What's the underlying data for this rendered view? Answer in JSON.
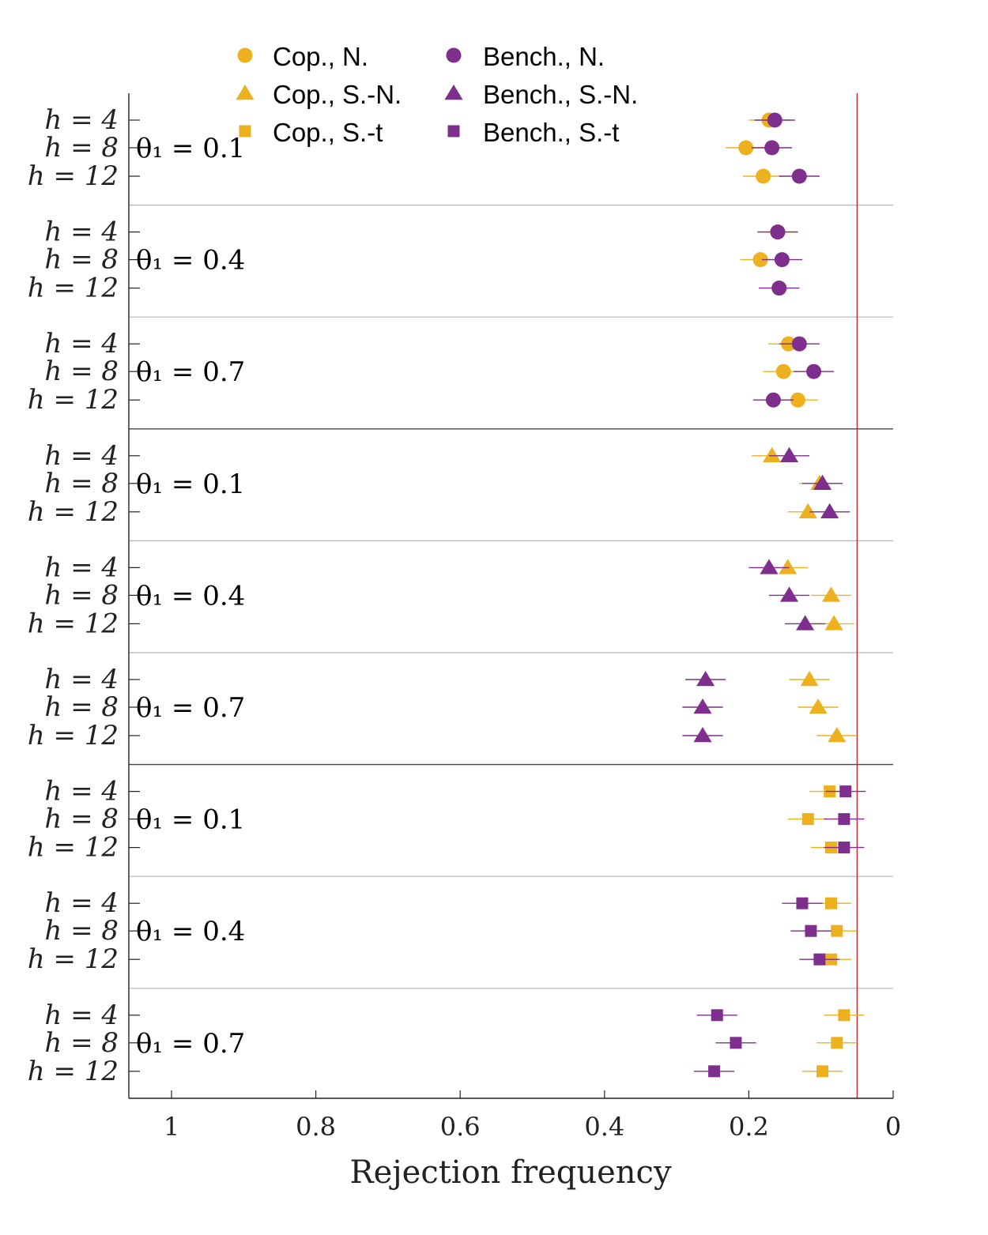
{
  "chart_data": {
    "type": "scatter",
    "title": "",
    "xlabel": "Rejection frequency",
    "ylabel": "",
    "xlim": [
      1.06,
      0
    ],
    "x_reversed": true,
    "xticks": [
      1,
      0.8,
      0.6,
      0.4,
      0.2,
      0
    ],
    "xtick_labels": [
      "1",
      "0.8",
      "0.6",
      "0.4",
      "0.2",
      "0"
    ],
    "reference_line": 0.05,
    "grid": false,
    "legend": {
      "placement": "top",
      "entries": [
        {
          "series": "Cop., N.",
          "label": "Cop., N.",
          "marker": "circle",
          "color": "#EDB120"
        },
        {
          "series": "Cop., S.-N.",
          "label": "Cop., S.-N.",
          "marker": "triangle",
          "color": "#EDB120"
        },
        {
          "series": "Cop., S.-t",
          "label": "Cop., S.-t",
          "marker": "square",
          "color": "#EDB120"
        },
        {
          "series": "Bench., N.",
          "label": "Bench., N.",
          "marker": "circle",
          "color": "#7E2F8E"
        },
        {
          "series": "Bench., S.-N.",
          "label": "Bench., S.-N.",
          "marker": "triangle",
          "color": "#7E2F8E"
        },
        {
          "series": "Bench., S.-t",
          "label": "Bench., S.-t",
          "marker": "square",
          "color": "#7E2F8E"
        }
      ]
    },
    "row_labels": [
      "h =  4",
      "h =  8",
      "h = 12"
    ],
    "horizons": [
      4,
      8,
      12
    ],
    "ci_halfwidth": 0.028,
    "panels": [
      {
        "distribution": "N.",
        "theta_label": "θ₁ = 0.1",
        "theta": 0.1,
        "series": [
          {
            "name": "Cop., N.",
            "values": [
              0.172,
              0.204,
              0.18
            ]
          },
          {
            "name": "Bench., N.",
            "values": [
              0.164,
              0.168,
              0.13
            ]
          }
        ]
      },
      {
        "distribution": "N.",
        "theta_label": "θ₁ = 0.4",
        "theta": 0.4,
        "series": [
          {
            "name": "Cop., N.",
            "values": [
              0.16,
              0.184,
              0.158
            ]
          },
          {
            "name": "Bench., N.",
            "values": [
              0.16,
              0.154,
              0.158
            ]
          }
        ]
      },
      {
        "distribution": "N.",
        "theta_label": "θ₁ = 0.7",
        "theta": 0.7,
        "series": [
          {
            "name": "Cop., N.",
            "values": [
              0.145,
              0.152,
              0.132
            ]
          },
          {
            "name": "Bench., N.",
            "values": [
              0.13,
              0.11,
              0.166
            ]
          }
        ]
      },
      {
        "distribution": "S.-N.",
        "theta_label": "θ₁ = 0.1",
        "theta": 0.1,
        "series": [
          {
            "name": "Cop., S.-N.",
            "values": [
              0.168,
              0.102,
              0.118
            ]
          },
          {
            "name": "Bench., S.-N.",
            "values": [
              0.144,
              0.098,
              0.088
            ]
          }
        ]
      },
      {
        "distribution": "S.-N.",
        "theta_label": "θ₁ = 0.4",
        "theta": 0.4,
        "series": [
          {
            "name": "Cop., S.-N.",
            "values": [
              0.146,
              0.086,
              0.082
            ]
          },
          {
            "name": "Bench., S.-N.",
            "values": [
              0.172,
              0.144,
              0.122
            ]
          }
        ]
      },
      {
        "distribution": "S.-N.",
        "theta_label": "θ₁ = 0.7",
        "theta": 0.7,
        "series": [
          {
            "name": "Cop., S.-N.",
            "values": [
              0.116,
              0.104,
              0.078
            ]
          },
          {
            "name": "Bench., S.-N.",
            "values": [
              0.26,
              0.264,
              0.264
            ]
          }
        ]
      },
      {
        "distribution": "S.-t",
        "theta_label": "θ₁ = 0.1",
        "theta": 0.1,
        "series": [
          {
            "name": "Cop., S.-t",
            "values": [
              0.088,
              0.118,
              0.086
            ]
          },
          {
            "name": "Bench., S.-t",
            "values": [
              0.066,
              0.068,
              0.068
            ]
          }
        ]
      },
      {
        "distribution": "S.-t",
        "theta_label": "θ₁ = 0.4",
        "theta": 0.4,
        "series": [
          {
            "name": "Cop., S.-t",
            "values": [
              0.086,
              0.078,
              0.086
            ]
          },
          {
            "name": "Bench., S.-t",
            "values": [
              0.126,
              0.114,
              0.102
            ]
          }
        ]
      },
      {
        "distribution": "S.-t",
        "theta_label": "θ₁ = 0.7",
        "theta": 0.7,
        "series": [
          {
            "name": "Cop., S.-t",
            "values": [
              0.068,
              0.078,
              0.098
            ]
          },
          {
            "name": "Bench., S.-t",
            "values": [
              0.244,
              0.218,
              0.248
            ]
          }
        ]
      }
    ]
  },
  "colors": {
    "copula": "#EDB120",
    "benchmark": "#7E2F8E",
    "reference_line": "#CC2222",
    "axis": "#222222",
    "separator_minor": "#B5B5B5",
    "separator_major": "#444444"
  }
}
